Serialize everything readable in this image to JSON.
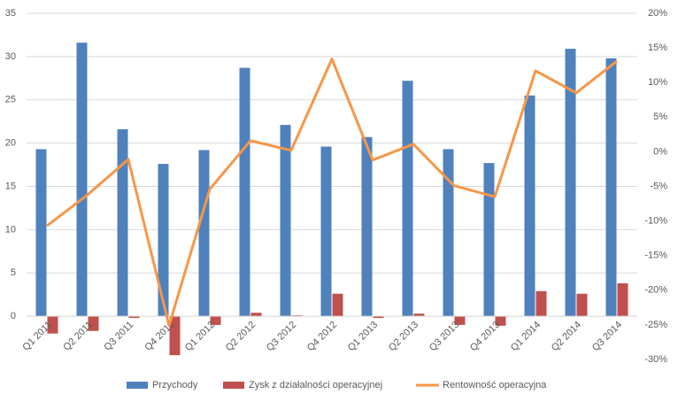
{
  "chart_data": {
    "type": "bar_line",
    "categories": [
      "Q1 2011",
      "Q2 2011",
      "Q3 2011",
      "Q4 2011",
      "Q1 2012",
      "Q2 2012",
      "Q3 2012",
      "Q4 2012",
      "Q1 2013",
      "Q2 2013",
      "Q3 2013",
      "Q4 2013",
      "Q1 2014",
      "Q2 2014",
      "Q3 2014"
    ],
    "series": [
      {
        "name": "Przychody",
        "color": "#4f81bd",
        "type": "bar",
        "values": [
          19.3,
          31.6,
          21.6,
          17.6,
          19.2,
          28.7,
          22.1,
          19.6,
          20.7,
          27.2,
          19.3,
          17.7,
          25.5,
          30.9,
          29.8
        ]
      },
      {
        "name": "Zysk z działalności operacyjnej",
        "color": "#c0504d",
        "type": "bar",
        "values": [
          -2.0,
          -1.7,
          -0.2,
          -4.5,
          -1.0,
          0.4,
          0.1,
          2.6,
          -0.2,
          0.3,
          -1.0,
          -1.1,
          2.9,
          2.6,
          3.8
        ]
      },
      {
        "name": "Rentowność operacyjna",
        "color": "#f79646",
        "type": "line",
        "axis": "y2",
        "values": [
          -10.7,
          -6.2,
          -1.1,
          -25.1,
          -5.4,
          1.6,
          0.2,
          13.4,
          -1.2,
          1.1,
          -4.9,
          -6.5,
          11.7,
          8.5,
          13.1
        ]
      }
    ],
    "ylim": [
      -5,
      35
    ],
    "yticks": [
      0,
      5,
      10,
      15,
      20,
      25,
      30,
      35
    ],
    "y2lim": [
      -30,
      20
    ],
    "y2ticks": [
      {
        "value": 20,
        "label": "20%"
      },
      {
        "value": 15,
        "label": "15%"
      },
      {
        "value": 10,
        "label": "10%"
      },
      {
        "value": 5,
        "label": "5%"
      },
      {
        "value": 0,
        "label": "0%"
      },
      {
        "value": -5,
        "label": "-5%"
      },
      {
        "value": -10,
        "label": "-10%"
      },
      {
        "value": -15,
        "label": "-15%"
      },
      {
        "value": -20,
        "label": "-20%"
      },
      {
        "value": -25,
        "label": "-25%"
      },
      {
        "value": -30,
        "label": "-30%"
      }
    ],
    "grid": true,
    "legend": "bottom"
  }
}
